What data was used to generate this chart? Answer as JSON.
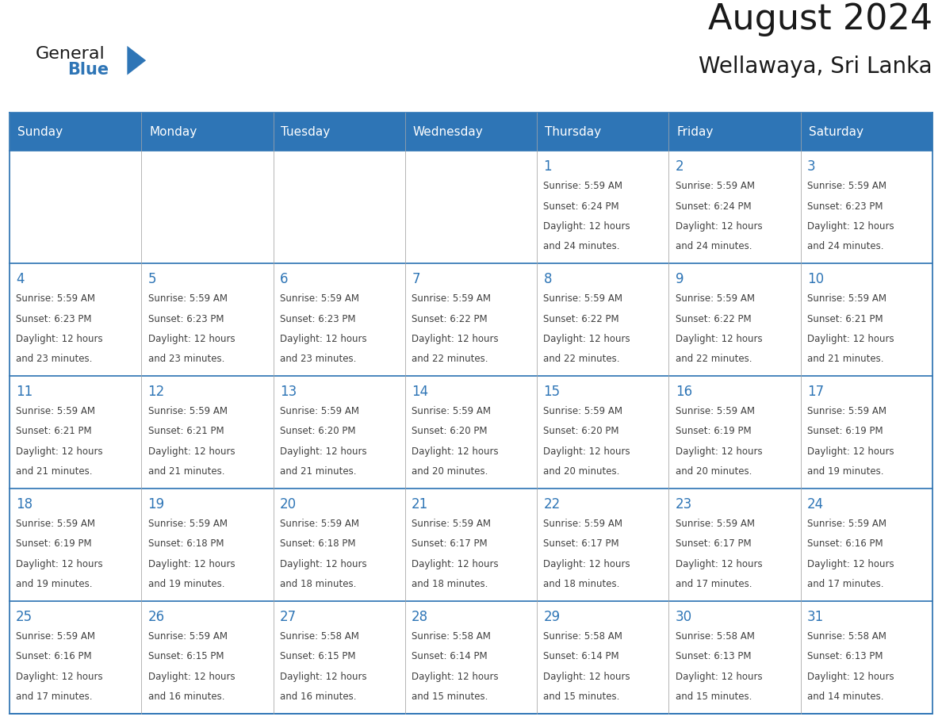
{
  "title": "August 2024",
  "subtitle": "Wellawaya, Sri Lanka",
  "days_of_week": [
    "Sunday",
    "Monday",
    "Tuesday",
    "Wednesday",
    "Thursday",
    "Friday",
    "Saturday"
  ],
  "header_bg_color": "#2E75B6",
  "header_text_color": "#FFFFFF",
  "cell_bg_color": "#FFFFFF",
  "border_color": "#2E75B6",
  "day_number_color": "#2E75B6",
  "cell_text_color": "#404040",
  "title_color": "#1A1A1A",
  "subtitle_color": "#1A1A1A",
  "logo_general_color": "#1A1A1A",
  "logo_blue_color": "#2E75B6",
  "weeks": [
    {
      "days": [
        {
          "day": null,
          "sunrise": null,
          "sunset": null,
          "daylight_hours": null,
          "daylight_minutes": null
        },
        {
          "day": null,
          "sunrise": null,
          "sunset": null,
          "daylight_hours": null,
          "daylight_minutes": null
        },
        {
          "day": null,
          "sunrise": null,
          "sunset": null,
          "daylight_hours": null,
          "daylight_minutes": null
        },
        {
          "day": null,
          "sunrise": null,
          "sunset": null,
          "daylight_hours": null,
          "daylight_minutes": null
        },
        {
          "day": 1,
          "sunrise": "5:59 AM",
          "sunset": "6:24 PM",
          "daylight_hours": 12,
          "daylight_minutes": 24
        },
        {
          "day": 2,
          "sunrise": "5:59 AM",
          "sunset": "6:24 PM",
          "daylight_hours": 12,
          "daylight_minutes": 24
        },
        {
          "day": 3,
          "sunrise": "5:59 AM",
          "sunset": "6:23 PM",
          "daylight_hours": 12,
          "daylight_minutes": 24
        }
      ]
    },
    {
      "days": [
        {
          "day": 4,
          "sunrise": "5:59 AM",
          "sunset": "6:23 PM",
          "daylight_hours": 12,
          "daylight_minutes": 23
        },
        {
          "day": 5,
          "sunrise": "5:59 AM",
          "sunset": "6:23 PM",
          "daylight_hours": 12,
          "daylight_minutes": 23
        },
        {
          "day": 6,
          "sunrise": "5:59 AM",
          "sunset": "6:23 PM",
          "daylight_hours": 12,
          "daylight_minutes": 23
        },
        {
          "day": 7,
          "sunrise": "5:59 AM",
          "sunset": "6:22 PM",
          "daylight_hours": 12,
          "daylight_minutes": 22
        },
        {
          "day": 8,
          "sunrise": "5:59 AM",
          "sunset": "6:22 PM",
          "daylight_hours": 12,
          "daylight_minutes": 22
        },
        {
          "day": 9,
          "sunrise": "5:59 AM",
          "sunset": "6:22 PM",
          "daylight_hours": 12,
          "daylight_minutes": 22
        },
        {
          "day": 10,
          "sunrise": "5:59 AM",
          "sunset": "6:21 PM",
          "daylight_hours": 12,
          "daylight_minutes": 21
        }
      ]
    },
    {
      "days": [
        {
          "day": 11,
          "sunrise": "5:59 AM",
          "sunset": "6:21 PM",
          "daylight_hours": 12,
          "daylight_minutes": 21
        },
        {
          "day": 12,
          "sunrise": "5:59 AM",
          "sunset": "6:21 PM",
          "daylight_hours": 12,
          "daylight_minutes": 21
        },
        {
          "day": 13,
          "sunrise": "5:59 AM",
          "sunset": "6:20 PM",
          "daylight_hours": 12,
          "daylight_minutes": 21
        },
        {
          "day": 14,
          "sunrise": "5:59 AM",
          "sunset": "6:20 PM",
          "daylight_hours": 12,
          "daylight_minutes": 20
        },
        {
          "day": 15,
          "sunrise": "5:59 AM",
          "sunset": "6:20 PM",
          "daylight_hours": 12,
          "daylight_minutes": 20
        },
        {
          "day": 16,
          "sunrise": "5:59 AM",
          "sunset": "6:19 PM",
          "daylight_hours": 12,
          "daylight_minutes": 20
        },
        {
          "day": 17,
          "sunrise": "5:59 AM",
          "sunset": "6:19 PM",
          "daylight_hours": 12,
          "daylight_minutes": 19
        }
      ]
    },
    {
      "days": [
        {
          "day": 18,
          "sunrise": "5:59 AM",
          "sunset": "6:19 PM",
          "daylight_hours": 12,
          "daylight_minutes": 19
        },
        {
          "day": 19,
          "sunrise": "5:59 AM",
          "sunset": "6:18 PM",
          "daylight_hours": 12,
          "daylight_minutes": 19
        },
        {
          "day": 20,
          "sunrise": "5:59 AM",
          "sunset": "6:18 PM",
          "daylight_hours": 12,
          "daylight_minutes": 18
        },
        {
          "day": 21,
          "sunrise": "5:59 AM",
          "sunset": "6:17 PM",
          "daylight_hours": 12,
          "daylight_minutes": 18
        },
        {
          "day": 22,
          "sunrise": "5:59 AM",
          "sunset": "6:17 PM",
          "daylight_hours": 12,
          "daylight_minutes": 18
        },
        {
          "day": 23,
          "sunrise": "5:59 AM",
          "sunset": "6:17 PM",
          "daylight_hours": 12,
          "daylight_minutes": 17
        },
        {
          "day": 24,
          "sunrise": "5:59 AM",
          "sunset": "6:16 PM",
          "daylight_hours": 12,
          "daylight_minutes": 17
        }
      ]
    },
    {
      "days": [
        {
          "day": 25,
          "sunrise": "5:59 AM",
          "sunset": "6:16 PM",
          "daylight_hours": 12,
          "daylight_minutes": 17
        },
        {
          "day": 26,
          "sunrise": "5:59 AM",
          "sunset": "6:15 PM",
          "daylight_hours": 12,
          "daylight_minutes": 16
        },
        {
          "day": 27,
          "sunrise": "5:58 AM",
          "sunset": "6:15 PM",
          "daylight_hours": 12,
          "daylight_minutes": 16
        },
        {
          "day": 28,
          "sunrise": "5:58 AM",
          "sunset": "6:14 PM",
          "daylight_hours": 12,
          "daylight_minutes": 15
        },
        {
          "day": 29,
          "sunrise": "5:58 AM",
          "sunset": "6:14 PM",
          "daylight_hours": 12,
          "daylight_minutes": 15
        },
        {
          "day": 30,
          "sunrise": "5:58 AM",
          "sunset": "6:13 PM",
          "daylight_hours": 12,
          "daylight_minutes": 15
        },
        {
          "day": 31,
          "sunrise": "5:58 AM",
          "sunset": "6:13 PM",
          "daylight_hours": 12,
          "daylight_minutes": 14
        }
      ]
    }
  ]
}
